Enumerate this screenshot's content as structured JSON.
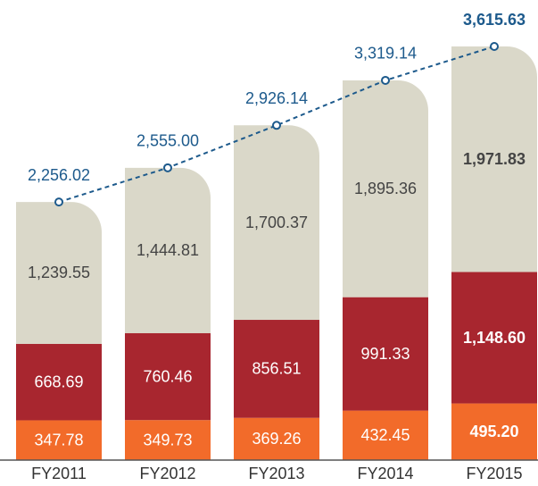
{
  "chart_data": {
    "type": "stacked_bar",
    "categories": [
      "FY2011",
      "FY2012",
      "FY2013",
      "FY2014",
      "FY2015"
    ],
    "series": [
      {
        "color": "#f26b2a",
        "label_color": "#ffffff",
        "values": [
          347.78,
          349.73,
          369.26,
          432.45,
          495.2
        ],
        "value_labels": [
          "347.78",
          "349.73",
          "369.26",
          "432.45",
          "495.20"
        ]
      },
      {
        "color": "#a8262f",
        "label_color": "#ffffff",
        "values": [
          668.69,
          760.46,
          856.51,
          991.33,
          1148.6
        ],
        "value_labels": [
          "668.69",
          "760.46",
          "856.51",
          "991.33",
          "1,148.60"
        ]
      },
      {
        "color": "#dad8c9",
        "label_color": "#444444",
        "values": [
          1239.55,
          1444.81,
          1700.37,
          1895.36,
          1971.83
        ],
        "value_labels": [
          "1,239.55",
          "1,444.81",
          "1,700.37",
          "1,895.36",
          "1,971.83"
        ]
      }
    ],
    "total": {
      "color": "#1d5a8c",
      "values": [
        2256.02,
        2555.0,
        2926.14,
        3319.14,
        3615.63
      ],
      "value_labels": [
        "2,256.02",
        "2,555.00",
        "2,926.14",
        "3,319.14",
        "3,615.63"
      ]
    }
  }
}
